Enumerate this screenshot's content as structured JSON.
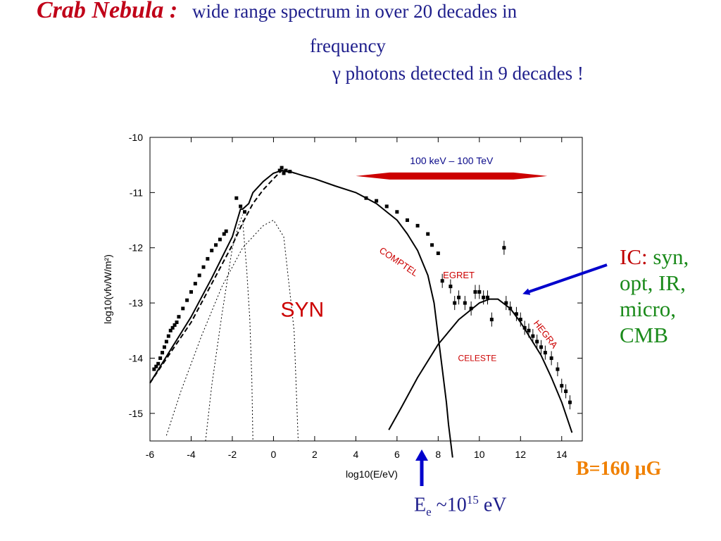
{
  "header": {
    "name": "Crab Nebula :",
    "line1": "wide range spectrum in over 20 decades in",
    "line2": "frequency",
    "line3": "γ photons detected in 9 decades !"
  },
  "side_labels": {
    "ic_prefix": "IC:",
    "ic_line1": "syn,",
    "ic_line2": "opt, IR,",
    "ic_line3": "micro,",
    "ic_line4": "CMB",
    "b_field": "B=160 μG",
    "electron_energy_base": "E",
    "electron_energy_sub": "e",
    "electron_energy_mid": " ~10",
    "electron_energy_sup": "15",
    "electron_energy_unit": " eV"
  },
  "colors": {
    "title_text": "#1f1f8c",
    "crab_name": "#c00018",
    "ic_label": "#c00000",
    "ic_sources": "#1a8a1a",
    "b_field": "#f08000",
    "arrow_blue": "#0000cc",
    "range_arrow": "#cc0000",
    "instrument_labels": "#cc0000"
  },
  "chart_data": {
    "type": "scatter",
    "xlabel": "log10(E/eV)",
    "ylabel": "log10(νfν/W/m²)",
    "xlim": [
      -6,
      15
    ],
    "ylim": [
      -15.5,
      -10
    ],
    "xticks": [
      -6,
      -4,
      -2,
      0,
      2,
      4,
      6,
      8,
      10,
      12,
      14
    ],
    "yticks": [
      -10,
      -11,
      -12,
      -13,
      -14,
      -15
    ],
    "grid": false,
    "range_annotation": {
      "text": "100 keV – 100 TeV",
      "from": 4,
      "to": 13.3,
      "y": -10.7
    },
    "annotations": [
      {
        "text": "SYN",
        "x": 1.4,
        "y": -13.25
      },
      {
        "text": "COMPTEL",
        "x": 6.0,
        "y": -12.3
      },
      {
        "text": "EGRET",
        "x": 9.0,
        "y": -12.55
      },
      {
        "text": "HEGRA",
        "x": 13.1,
        "y": -13.6
      },
      {
        "text": "CELESTE",
        "x": 9.9,
        "y": -14.05
      }
    ],
    "series": [
      {
        "style": "solid",
        "x": [
          -6,
          -5,
          -4,
          -3,
          -2,
          -1.6,
          -1.5,
          -1.2,
          -1,
          -0.5,
          0,
          0.4,
          0.8,
          1.5,
          2,
          3,
          4,
          5,
          6,
          6.5,
          7,
          7.5,
          7.8,
          8,
          8.2,
          8.4,
          8.5,
          8.6,
          8.7
        ],
        "y": [
          -14.45,
          -13.85,
          -13.25,
          -12.55,
          -11.8,
          -11.3,
          -11.3,
          -11.2,
          -11.0,
          -10.8,
          -10.65,
          -10.6,
          -10.62,
          -10.7,
          -10.75,
          -10.88,
          -11.0,
          -11.2,
          -11.5,
          -11.75,
          -12.05,
          -12.5,
          -13.0,
          -13.6,
          -14.2,
          -14.8,
          -15.2,
          -15.5,
          -15.8
        ]
      },
      {
        "style": "dashed",
        "x": [
          -6,
          -5,
          -4,
          -3,
          -2,
          -1.5,
          -1,
          -0.5,
          0,
          0.4,
          1
        ],
        "y": [
          -14.45,
          -13.9,
          -13.35,
          -12.65,
          -11.95,
          -11.55,
          -11.2,
          -10.95,
          -10.75,
          -10.6,
          -10.65
        ]
      },
      {
        "style": "solid",
        "x": [
          5.6,
          6.2,
          7,
          8,
          9,
          10,
          10.5,
          10.9,
          11.5,
          12,
          12.5,
          13,
          13.5,
          14,
          14.5
        ],
        "y": [
          -15.3,
          -14.9,
          -14.35,
          -13.75,
          -13.3,
          -13.0,
          -12.93,
          -12.93,
          -13.1,
          -13.35,
          -13.65,
          -13.95,
          -14.35,
          -14.8,
          -15.35
        ]
      },
      {
        "style": "dotted",
        "x": [
          -5.2,
          -4.5,
          -3.5,
          -2.5,
          -1.5,
          -0.5,
          0,
          0.5,
          1,
          1.2
        ],
        "y": [
          -15.4,
          -14.6,
          -13.6,
          -12.7,
          -12.0,
          -11.6,
          -11.5,
          -11.8,
          -13.5,
          -15.5
        ]
      },
      {
        "style": "dotted",
        "x": [
          -3.3,
          -3.0,
          -2.5,
          -2.0,
          -1.7,
          -1.5
        ],
        "y": [
          -15.5,
          -14.5,
          -13.2,
          -12.0,
          -11.6,
          -11.4
        ]
      },
      {
        "style": "dotted",
        "x": [
          -1.5,
          -1.3,
          -1.15,
          -1.05,
          -1.0
        ],
        "y": [
          -11.5,
          -12.4,
          -13.3,
          -14.4,
          -15.5
        ]
      }
    ],
    "points": {
      "x": [
        -5.8,
        -5.7,
        -5.6,
        -5.5,
        -5.4,
        -5.3,
        -5.2,
        -5.1,
        -5.0,
        -4.9,
        -4.8,
        -4.7,
        -4.6,
        -4.4,
        -4.2,
        -4.0,
        -3.8,
        -3.6,
        -3.4,
        -3.2,
        -3.0,
        -2.8,
        -2.6,
        -2.4,
        -2.3,
        -1.8,
        -1.6,
        -1.4,
        0.3,
        0.4,
        0.5,
        0.6,
        0.8,
        4.5,
        5.0,
        5.5,
        6.0,
        6.5,
        7.0,
        7.5,
        7.7,
        8.0,
        8.2,
        8.6,
        8.8,
        9.0,
        9.3,
        9.6,
        9.8,
        10.0,
        10.2,
        10.4,
        10.6,
        11.2,
        11.3,
        11.5,
        11.8,
        12.0,
        12.2,
        12.4,
        12.6,
        12.8,
        13.0,
        13.2,
        13.5,
        13.8,
        14.0,
        14.2,
        14.4
      ],
      "y": [
        -14.2,
        -14.15,
        -14.1,
        -14.0,
        -13.9,
        -13.8,
        -13.7,
        -13.6,
        -13.5,
        -13.45,
        -13.4,
        -13.35,
        -13.25,
        -13.1,
        -12.95,
        -12.8,
        -12.65,
        -12.5,
        -12.35,
        -12.2,
        -12.05,
        -11.95,
        -11.85,
        -11.75,
        -11.7,
        -11.1,
        -11.25,
        -11.35,
        -10.6,
        -10.55,
        -10.65,
        -10.6,
        -10.62,
        -11.1,
        -11.15,
        -11.25,
        -11.35,
        -11.5,
        -11.6,
        -11.75,
        -11.95,
        -12.1,
        -12.6,
        -12.7,
        -13.0,
        -12.9,
        -13.0,
        -13.1,
        -12.8,
        -12.8,
        -12.9,
        -12.9,
        -13.3,
        -12.0,
        -13.0,
        -13.1,
        -13.2,
        -13.3,
        -13.45,
        -13.5,
        -13.6,
        -13.7,
        -13.8,
        -13.9,
        -14.0,
        -14.2,
        -14.5,
        -14.6,
        -14.8
      ]
    }
  }
}
